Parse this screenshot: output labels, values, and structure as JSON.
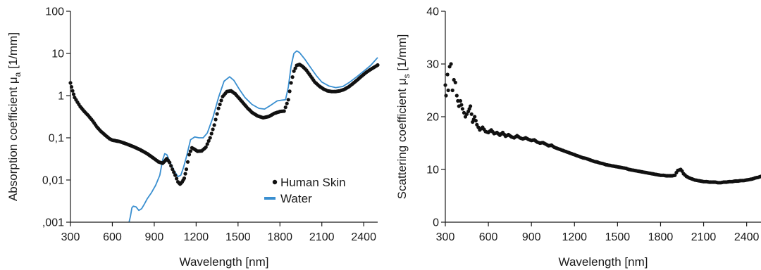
{
  "chart_data": [
    {
      "type": "scatter",
      "xlabel": "Wavelength [nm]",
      "ylabel_main": "Absorption coefficient μ",
      "ylabel_sub": "a",
      "ylabel_unit": " [1/mm]",
      "y_scale": "log",
      "xlim": [
        300,
        2500
      ],
      "ylim": [
        0.001,
        100
      ],
      "x_ticks": [
        300,
        600,
        900,
        1200,
        1500,
        1800,
        2100,
        2400
      ],
      "x_tick_labels": [
        "300",
        "600",
        "900",
        "1200",
        "1500",
        "1800",
        "2100",
        "2400"
      ],
      "y_ticks": [
        0.001,
        0.01,
        0.1,
        1,
        10,
        100
      ],
      "y_tick_labels": [
        ",001",
        "0,01",
        "0,1",
        "1",
        "10",
        "100"
      ],
      "legend_position": "bottom-right",
      "series": [
        {
          "name": "Human Skin",
          "style": "dots",
          "color": "#111111",
          "points": [
            [
              300,
              2.0
            ],
            [
              315,
              1.3
            ],
            [
              330,
              0.9
            ],
            [
              350,
              0.7
            ],
            [
              370,
              0.55
            ],
            [
              400,
              0.42
            ],
            [
              430,
              0.33
            ],
            [
              460,
              0.25
            ],
            [
              490,
              0.18
            ],
            [
              520,
              0.14
            ],
            [
              550,
              0.115
            ],
            [
              580,
              0.095
            ],
            [
              600,
              0.088
            ],
            [
              650,
              0.082
            ],
            [
              700,
              0.072
            ],
            [
              750,
              0.062
            ],
            [
              800,
              0.052
            ],
            [
              850,
              0.042
            ],
            [
              900,
              0.032
            ],
            [
              930,
              0.027
            ],
            [
              960,
              0.025
            ],
            [
              975,
              0.028
            ],
            [
              990,
              0.032
            ],
            [
              1010,
              0.026
            ],
            [
              1030,
              0.018
            ],
            [
              1050,
              0.013
            ],
            [
              1070,
              0.009
            ],
            [
              1085,
              0.008
            ],
            [
              1100,
              0.009
            ],
            [
              1115,
              0.011
            ],
            [
              1130,
              0.018
            ],
            [
              1150,
              0.04
            ],
            [
              1170,
              0.058
            ],
            [
              1190,
              0.053
            ],
            [
              1210,
              0.048
            ],
            [
              1240,
              0.049
            ],
            [
              1270,
              0.06
            ],
            [
              1300,
              0.1
            ],
            [
              1330,
              0.2
            ],
            [
              1360,
              0.5
            ],
            [
              1390,
              0.95
            ],
            [
              1420,
              1.25
            ],
            [
              1450,
              1.3
            ],
            [
              1480,
              1.1
            ],
            [
              1510,
              0.85
            ],
            [
              1540,
              0.65
            ],
            [
              1570,
              0.5
            ],
            [
              1600,
              0.4
            ],
            [
              1640,
              0.33
            ],
            [
              1680,
              0.3
            ],
            [
              1720,
              0.32
            ],
            [
              1760,
              0.38
            ],
            [
              1800,
              0.42
            ],
            [
              1830,
              0.43
            ],
            [
              1860,
              0.8
            ],
            [
              1880,
              2.0
            ],
            [
              1900,
              3.8
            ],
            [
              1920,
              5.2
            ],
            [
              1940,
              5.5
            ],
            [
              1960,
              5.0
            ],
            [
              1990,
              4.0
            ],
            [
              2020,
              2.9
            ],
            [
              2050,
              2.1
            ],
            [
              2080,
              1.7
            ],
            [
              2110,
              1.45
            ],
            [
              2140,
              1.3
            ],
            [
              2170,
              1.25
            ],
            [
              2200,
              1.25
            ],
            [
              2230,
              1.3
            ],
            [
              2260,
              1.4
            ],
            [
              2290,
              1.6
            ],
            [
              2320,
              1.9
            ],
            [
              2350,
              2.3
            ],
            [
              2380,
              2.8
            ],
            [
              2410,
              3.4
            ],
            [
              2440,
              4.0
            ],
            [
              2470,
              4.6
            ],
            [
              2500,
              5.3
            ]
          ]
        },
        {
          "name": "Water",
          "style": "line",
          "color": "#3a8fd0",
          "points": [
            [
              720,
              0.001
            ],
            [
              730,
              0.0014
            ],
            [
              740,
              0.0022
            ],
            [
              750,
              0.0024
            ],
            [
              770,
              0.0023
            ],
            [
              790,
              0.0019
            ],
            [
              810,
              0.0021
            ],
            [
              830,
              0.0027
            ],
            [
              850,
              0.0036
            ],
            [
              880,
              0.005
            ],
            [
              910,
              0.0075
            ],
            [
              940,
              0.013
            ],
            [
              960,
              0.03
            ],
            [
              975,
              0.042
            ],
            [
              990,
              0.04
            ],
            [
              1010,
              0.028
            ],
            [
              1040,
              0.017
            ],
            [
              1070,
              0.012
            ],
            [
              1090,
              0.013
            ],
            [
              1110,
              0.02
            ],
            [
              1130,
              0.035
            ],
            [
              1160,
              0.09
            ],
            [
              1190,
              0.105
            ],
            [
              1220,
              0.1
            ],
            [
              1250,
              0.1
            ],
            [
              1280,
              0.13
            ],
            [
              1320,
              0.3
            ],
            [
              1360,
              0.9
            ],
            [
              1400,
              2.2
            ],
            [
              1440,
              2.8
            ],
            [
              1470,
              2.3
            ],
            [
              1510,
              1.4
            ],
            [
              1550,
              0.9
            ],
            [
              1600,
              0.62
            ],
            [
              1650,
              0.5
            ],
            [
              1690,
              0.48
            ],
            [
              1730,
              0.58
            ],
            [
              1780,
              0.75
            ],
            [
              1810,
              0.78
            ],
            [
              1840,
              0.8
            ],
            [
              1860,
              1.6
            ],
            [
              1880,
              5.0
            ],
            [
              1900,
              10.0
            ],
            [
              1920,
              11.5
            ],
            [
              1940,
              10.5
            ],
            [
              1980,
              7.2
            ],
            [
              2020,
              4.6
            ],
            [
              2060,
              3.0
            ],
            [
              2100,
              2.1
            ],
            [
              2150,
              1.7
            ],
            [
              2200,
              1.55
            ],
            [
              2250,
              1.65
            ],
            [
              2300,
              2.1
            ],
            [
              2350,
              2.8
            ],
            [
              2400,
              3.8
            ],
            [
              2450,
              5.2
            ],
            [
              2500,
              8.0
            ]
          ]
        }
      ]
    },
    {
      "type": "scatter",
      "xlabel": "Wavelength [nm]",
      "ylabel_main": "Scattering coefficient μ",
      "ylabel_sub": "s",
      "ylabel_unit": " [1/mm]",
      "y_scale": "linear",
      "xlim": [
        300,
        2500
      ],
      "ylim": [
        0,
        40
      ],
      "x_ticks": [
        300,
        600,
        900,
        1200,
        1500,
        1800,
        2100,
        2400
      ],
      "x_tick_labels": [
        "300",
        "600",
        "900",
        "1200",
        "1500",
        "1800",
        "2100",
        "2400"
      ],
      "y_ticks": [
        0,
        10,
        20,
        30,
        40
      ],
      "y_tick_labels": [
        "0",
        "10",
        "20",
        "30",
        "40"
      ],
      "series": [
        {
          "style": "dots",
          "color": "#111111",
          "points": [
            [
              300,
              26
            ],
            [
              305,
              24
            ],
            [
              315,
              28
            ],
            [
              320,
              25
            ],
            [
              330,
              29.5
            ],
            [
              340,
              30
            ],
            [
              350,
              25
            ],
            [
              360,
              27
            ],
            [
              370,
              26.5
            ],
            [
              380,
              24
            ],
            [
              395,
              22
            ],
            [
              405,
              23
            ],
            [
              420,
              21.5
            ],
            [
              440,
              20
            ],
            [
              460,
              21
            ],
            [
              475,
              22
            ],
            [
              490,
              19
            ],
            [
              505,
              20
            ],
            [
              520,
              18.5
            ],
            [
              540,
              17.5
            ],
            [
              560,
              18
            ],
            [
              580,
              17.2
            ],
            [
              600,
              17
            ],
            [
              620,
              17.5
            ],
            [
              640,
              16.8
            ],
            [
              660,
              17
            ],
            [
              680,
              16.5
            ],
            [
              700,
              17
            ],
            [
              720,
              16.3
            ],
            [
              740,
              16.6
            ],
            [
              760,
              16.2
            ],
            [
              780,
              16
            ],
            [
              800,
              16.4
            ],
            [
              820,
              16
            ],
            [
              840,
              15.8
            ],
            [
              860,
              16
            ],
            [
              880,
              15.7
            ],
            [
              900,
              15.5
            ],
            [
              920,
              15.6
            ],
            [
              940,
              15.2
            ],
            [
              960,
              15
            ],
            [
              980,
              15.1
            ],
            [
              1000,
              14.8
            ],
            [
              1020,
              14.5
            ],
            [
              1040,
              14.6
            ],
            [
              1060,
              14.2
            ],
            [
              1080,
              14
            ],
            [
              1100,
              13.8
            ],
            [
              1120,
              13.6
            ],
            [
              1140,
              13.4
            ],
            [
              1160,
              13.2
            ],
            [
              1180,
              13
            ],
            [
              1200,
              12.8
            ],
            [
              1220,
              12.6
            ],
            [
              1240,
              12.4
            ],
            [
              1260,
              12.2
            ],
            [
              1280,
              12.1
            ],
            [
              1300,
              11.9
            ],
            [
              1320,
              11.7
            ],
            [
              1340,
              11.5
            ],
            [
              1360,
              11.4
            ],
            [
              1380,
              11.2
            ],
            [
              1400,
              11.1
            ],
            [
              1420,
              10.9
            ],
            [
              1440,
              10.8
            ],
            [
              1460,
              10.7
            ],
            [
              1480,
              10.6
            ],
            [
              1500,
              10.5
            ],
            [
              1520,
              10.4
            ],
            [
              1540,
              10.3
            ],
            [
              1560,
              10.2
            ],
            [
              1580,
              10
            ],
            [
              1600,
              9.9
            ],
            [
              1620,
              9.8
            ],
            [
              1640,
              9.7
            ],
            [
              1660,
              9.6
            ],
            [
              1680,
              9.5
            ],
            [
              1700,
              9.4
            ],
            [
              1720,
              9.3
            ],
            [
              1740,
              9.2
            ],
            [
              1760,
              9.1
            ],
            [
              1780,
              9.0
            ],
            [
              1800,
              8.9
            ],
            [
              1820,
              8.9
            ],
            [
              1840,
              8.8
            ],
            [
              1860,
              8.8
            ],
            [
              1880,
              8.8
            ],
            [
              1900,
              8.9
            ],
            [
              1910,
              9.4
            ],
            [
              1920,
              9.8
            ],
            [
              1930,
              9.9
            ],
            [
              1940,
              10.0
            ],
            [
              1950,
              9.7
            ],
            [
              1960,
              9.2
            ],
            [
              1980,
              8.7
            ],
            [
              2000,
              8.4
            ],
            [
              2020,
              8.2
            ],
            [
              2040,
              8.0
            ],
            [
              2060,
              7.9
            ],
            [
              2080,
              7.8
            ],
            [
              2100,
              7.7
            ],
            [
              2120,
              7.7
            ],
            [
              2140,
              7.6
            ],
            [
              2160,
              7.6
            ],
            [
              2180,
              7.6
            ],
            [
              2200,
              7.5
            ],
            [
              2220,
              7.5
            ],
            [
              2240,
              7.6
            ],
            [
              2260,
              7.6
            ],
            [
              2280,
              7.7
            ],
            [
              2300,
              7.7
            ],
            [
              2320,
              7.8
            ],
            [
              2340,
              7.8
            ],
            [
              2360,
              7.9
            ],
            [
              2380,
              7.9
            ],
            [
              2400,
              8.0
            ],
            [
              2420,
              8.1
            ],
            [
              2440,
              8.2
            ],
            [
              2460,
              8.4
            ],
            [
              2480,
              8.5
            ],
            [
              2500,
              8.7
            ]
          ]
        }
      ]
    }
  ]
}
